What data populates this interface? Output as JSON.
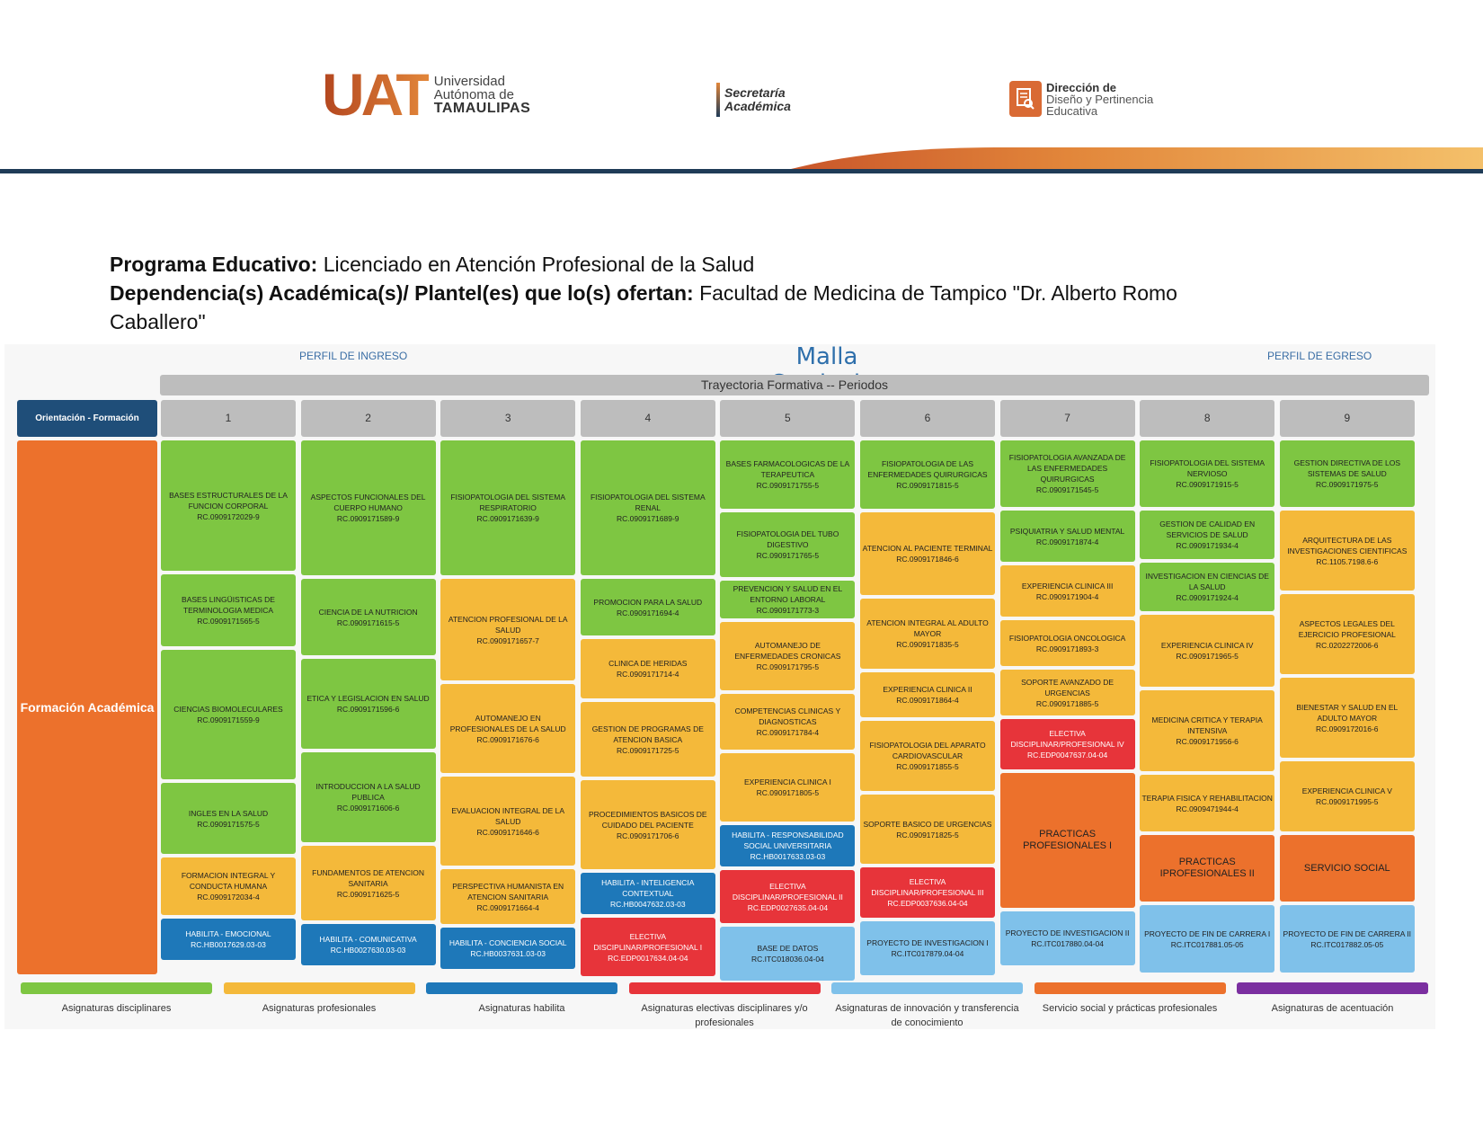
{
  "header": {
    "uat_mark": "UAT",
    "uat_line1": "Universidad",
    "uat_line2": "Autónoma de",
    "uat_line3": "TAMAULIPAS",
    "sec_line1": "Secretaría",
    "sec_line2": "Académica",
    "dir_line1": "Dirección de",
    "dir_line2": "Diseño y Pertinencia",
    "dir_line3": "Educativa"
  },
  "info": {
    "programa_label": "Programa Educativo:",
    "programa_value": "Licenciado en Atención Profesional de la Salud",
    "dependencia_label": "Dependencia(s) Académica(s)/ Plantel(es) que lo(s) ofertan:",
    "dependencia_value": "Facultad de Medicina de Tampico \"Dr. Alberto Romo Caballero\""
  },
  "malla": {
    "perfil_ingreso": "PERFIL DE INGRESO",
    "perfil_egreso": "PERFIL DE EGRESO",
    "title": "Malla Curricular",
    "trayectoria": "Trayectoria Formativa -- Periodos",
    "orientacion": "Orientación - Formación",
    "formacion": "Formación Académica",
    "periods": [
      "1",
      "2",
      "3",
      "4",
      "5",
      "6",
      "7",
      "8",
      "9"
    ]
  },
  "columns": [
    [
      {
        "name": "BASES ESTRUCTURALES DE LA FUNCION CORPORAL",
        "code": "RC.0909172029-9",
        "type": "disc",
        "h": 145
      },
      {
        "name": "BASES LINGÜISTICAS DE TERMINOLOGIA MEDICA",
        "code": "RC.0909171565-5",
        "type": "disc",
        "h": 80
      },
      {
        "name": "CIENCIAS BIOMOLECULARES",
        "code": "RC.0909171559-9",
        "type": "disc",
        "h": 144
      },
      {
        "name": "INGLES EN LA SALUD",
        "code": "RC.0909171575-5",
        "type": "disc",
        "h": 79
      },
      {
        "name": "FORMACION INTEGRAL Y CONDUCTA HUMANA",
        "code": "RC.0909172034-4",
        "type": "prof",
        "h": 64
      },
      {
        "name": "HABILITA - EMOCIONAL",
        "code": "RC.HB0017629.03-03",
        "type": "hab",
        "h": 46
      }
    ],
    [
      {
        "name": "ASPECTOS FUNCIONALES DEL CUERPO HUMANO",
        "code": "RC.0909171589-9",
        "type": "disc",
        "h": 150
      },
      {
        "name": "CIENCIA DE LA NUTRICION",
        "code": "RC.0909171615-5",
        "type": "disc",
        "h": 85
      },
      {
        "name": "ETICA Y LEGISLACION EN SALUD",
        "code": "RC.0909171596-6",
        "type": "disc",
        "h": 100
      },
      {
        "name": "INTRODUCCION A LA SALUD PUBLICA",
        "code": "RC.0909171606-6",
        "type": "disc",
        "h": 100
      },
      {
        "name": "FUNDAMENTOS DE ATENCION SANITARIA",
        "code": "RC.0909171625-5",
        "type": "prof",
        "h": 83
      },
      {
        "name": "HABILITA - COMUNICATIVA",
        "code": "RC.HB0027630.03-03",
        "type": "hab",
        "h": 46
      }
    ],
    [
      {
        "name": "FISIOPATOLOGIA DEL SISTEMA RESPIRATORIO",
        "code": "RC.0909171639-9",
        "type": "disc",
        "h": 150
      },
      {
        "name": "ATENCION PROFESIONAL DE LA SALUD",
        "code": "RC.0909171657-7",
        "type": "prof",
        "h": 113
      },
      {
        "name": "AUTOMANEJO EN PROFESIONALES DE LA SALUD",
        "code": "RC.0909171676-6",
        "type": "prof",
        "h": 99
      },
      {
        "name": "EVALUACION INTEGRAL DE LA SALUD",
        "code": "RC.0909171646-6",
        "type": "prof",
        "h": 99
      },
      {
        "name": "PERSPECTIVA HUMANISTA EN ATENCION SANITARIA",
        "code": "RC.0909171664-4",
        "type": "prof",
        "h": 61
      },
      {
        "name": "HABILITA - CONCIENCIA SOCIAL",
        "code": "RC.HB0037631.03-03",
        "type": "hab",
        "h": 46
      }
    ],
    [
      {
        "name": "FISIOPATOLOGIA DEL SISTEMA RENAL",
        "code": "RC.0909171689-9",
        "type": "disc",
        "h": 150
      },
      {
        "name": "PROMOCION PARA LA SALUD",
        "code": "RC.0909171694-4",
        "type": "disc",
        "h": 63
      },
      {
        "name": "CLINICA DE HERIDAS",
        "code": "RC.0909171714-4",
        "type": "prof",
        "h": 66
      },
      {
        "name": "GESTION DE PROGRAMAS DE ATENCION BASICA",
        "code": "RC.0909171725-5",
        "type": "prof",
        "h": 83
      },
      {
        "name": "PROCEDIMIENTOS BASICOS DE CUIDADO DEL PACIENTE",
        "code": "RC.0909171706-6",
        "type": "prof",
        "h": 99
      },
      {
        "name": "HABILITA - INTELIGENCIA CONTEXTUAL",
        "code": "RC.HB0047632.03-03",
        "type": "hab",
        "h": 46
      },
      {
        "name": "ELECTIVA DISCIPLINAR/PROFESIONAL I",
        "code": "RC.EDP0017634.04-04",
        "type": "elec",
        "h": 65
      }
    ],
    [
      {
        "name": "BASES FARMACOLOGICAS DE LA TERAPEUTICA",
        "code": "RC.0909171755-5",
        "type": "disc",
        "h": 76
      },
      {
        "name": "FISIOPATOLOGIA DEL TUBO DIGESTIVO",
        "code": "RC.0909171765-5",
        "type": "disc",
        "h": 72
      },
      {
        "name": "PREVENCION Y SALUD EN EL ENTORNO LABORAL",
        "code": "RC.0909171773-3",
        "type": "disc",
        "h": 42
      },
      {
        "name": "AUTOMANEJO DE ENFERMEDADES CRONICAS",
        "code": "RC.0909171795-5",
        "type": "prof",
        "h": 76
      },
      {
        "name": "COMPETENCIAS CLINICAS Y DIAGNOSTICAS",
        "code": "RC.0909171784-4",
        "type": "prof",
        "h": 62
      },
      {
        "name": "EXPERIENCIA CLINICA I",
        "code": "RC.0909171805-5",
        "type": "prof",
        "h": 76
      },
      {
        "name": "HABILITA - RESPONSABILIDAD SOCIAL UNIVERSITARIA",
        "code": "RC.HB0017633.03-03",
        "type": "hab",
        "h": 46
      },
      {
        "name": "ELECTIVA DISCIPLINAR/PROFESIONAL II",
        "code": "RC.EDP0027635.04-04",
        "type": "elec",
        "h": 59
      },
      {
        "name": "BASE DE DATOS",
        "code": "RC.ITC018036.04-04",
        "type": "inno",
        "h": 60
      }
    ],
    [
      {
        "name": "FISIOPATOLOGIA DE LAS ENFERMEDADES QUIRURGICAS",
        "code": "RC.0909171815-5",
        "type": "disc",
        "h": 76
      },
      {
        "name": "ATENCION AL PACIENTE TERMINAL",
        "code": "RC.0909171846-6",
        "type": "prof",
        "h": 92
      },
      {
        "name": "ATENCION INTEGRAL AL ADULTO MAYOR",
        "code": "RC.0909171835-5",
        "type": "prof",
        "h": 78
      },
      {
        "name": "EXPERIENCIA CLINICA II",
        "code": "RC.0909171864-4",
        "type": "prof",
        "h": 50
      },
      {
        "name": "FISIOPATOLOGIA DEL APARATO CARDIOVASCULAR",
        "code": "RC.0909171855-5",
        "type": "prof",
        "h": 78
      },
      {
        "name": "SOPORTE BASICO DE URGENCIAS",
        "code": "RC.0909171825-5",
        "type": "prof",
        "h": 77
      },
      {
        "name": "ELECTIVA DISCIPLINAR/PROFESIONAL III",
        "code": "RC.EDP0037636.04-04",
        "type": "elec",
        "h": 56
      },
      {
        "name": "PROYECTO DE INVESTIGACION I",
        "code": "RC.ITC017879.04-04",
        "type": "inno",
        "h": 60
      }
    ],
    [
      {
        "name": "FISIOPATOLOGIA AVANZADA DE LAS ENFERMEDADES QUIRURGICAS",
        "code": "RC.0909171545-5",
        "type": "disc",
        "h": 74
      },
      {
        "name": "PSIQUIATRIA Y SALUD MENTAL",
        "code": "RC.0909171874-4",
        "type": "disc",
        "h": 57
      },
      {
        "name": "EXPERIENCIA CLINICA III",
        "code": "RC.0909171904-4",
        "type": "prof",
        "h": 57
      },
      {
        "name": "FISIOPATOLOGIA ONCOLOGICA",
        "code": "RC.0909171893-3",
        "type": "prof",
        "h": 51
      },
      {
        "name": "SOPORTE AVANZADO DE URGENCIAS",
        "code": "RC.0909171885-5",
        "type": "prof",
        "h": 51
      },
      {
        "name": "ELECTIVA DISCIPLINAR/PROFESIONAL IV",
        "code": "RC.EDP0047637.04-04",
        "type": "elec",
        "h": 56
      },
      {
        "name": "PRACTICAS PROFESIONALES I",
        "code": "",
        "type": "serv",
        "h": 150
      },
      {
        "name": "PROYECTO DE INVESTIGACION II",
        "code": "RC.ITC017880.04-04",
        "type": "inno",
        "h": 60
      }
    ],
    [
      {
        "name": "FISIOPATOLOGIA DEL SISTEMA NERVIOSO",
        "code": "RC.0909171915-5",
        "type": "disc",
        "h": 74
      },
      {
        "name": "GESTION DE CALIDAD EN SERVICIOS DE SALUD",
        "code": "RC.0909171934-4",
        "type": "disc",
        "h": 54
      },
      {
        "name": "INVESTIGACION EN CIENCIAS DE LA SALUD",
        "code": "RC.0909171924-4",
        "type": "disc",
        "h": 54
      },
      {
        "name": "EXPERIENCIA CLINICA IV",
        "code": "RC.0909171965-5",
        "type": "prof",
        "h": 80
      },
      {
        "name": "MEDICINA CRITICA Y TERAPIA INTENSIVA",
        "code": "RC.0909171956-6",
        "type": "prof",
        "h": 90
      },
      {
        "name": "TERAPIA FISICA Y REHABILITACION",
        "code": "RC.0909471944-4",
        "type": "prof",
        "h": 63
      },
      {
        "name": "PRACTICAS IPROFESIONALES II",
        "code": "",
        "type": "serv",
        "h": 74
      },
      {
        "name": "PROYECTO DE FIN DE CARRERA I",
        "code": "RC.ITC017881.05-05",
        "type": "inno",
        "h": 75
      }
    ],
    [
      {
        "name": "GESTION DIRECTIVA DE LOS SISTEMAS DE SALUD",
        "code": "RC.0909171975-5",
        "type": "disc",
        "h": 74
      },
      {
        "name": "ARQUITECTURA DE LAS INVESTIGACIONES CIENTIFICAS",
        "code": "RC.1105.7198.6-6",
        "type": "prof",
        "h": 89
      },
      {
        "name": "ASPECTOS LEGALES DEL EJERCICIO PROFESIONAL",
        "code": "RC.0202272006-6",
        "type": "prof",
        "h": 89
      },
      {
        "name": "BIENESTAR Y SALUD EN EL ADULTO MAYOR",
        "code": "RC.0909172016-6",
        "type": "prof",
        "h": 89
      },
      {
        "name": "EXPERIENCIA CLINICA V",
        "code": "RC.0909171995-5",
        "type": "prof",
        "h": 78
      },
      {
        "name": "SERVICIO SOCIAL",
        "code": "",
        "type": "serv",
        "h": 74
      },
      {
        "name": "PROYECTO DE FIN DE CARRERA II",
        "code": "RC.ITC017882.05-05",
        "type": "inno",
        "h": 75
      }
    ]
  ],
  "legend": [
    {
      "label": "Asignaturas disciplinares",
      "color": "#7ec642"
    },
    {
      "label": "Asignaturas profesionales",
      "color": "#f4b93a"
    },
    {
      "label": "Asignaturas habilita",
      "color": "#1e78b9"
    },
    {
      "label": "Asignaturas electivas disciplinares y/o profesionales",
      "color": "#e7343a"
    },
    {
      "label": "Asignaturas de innovación y transferencia de conocimiento",
      "color": "#7fc1ea"
    },
    {
      "label": "Servicio social y prácticas profesionales",
      "color": "#ec712c"
    },
    {
      "label": "Asignaturas de acentuación",
      "color": "#7b2fa0"
    }
  ]
}
